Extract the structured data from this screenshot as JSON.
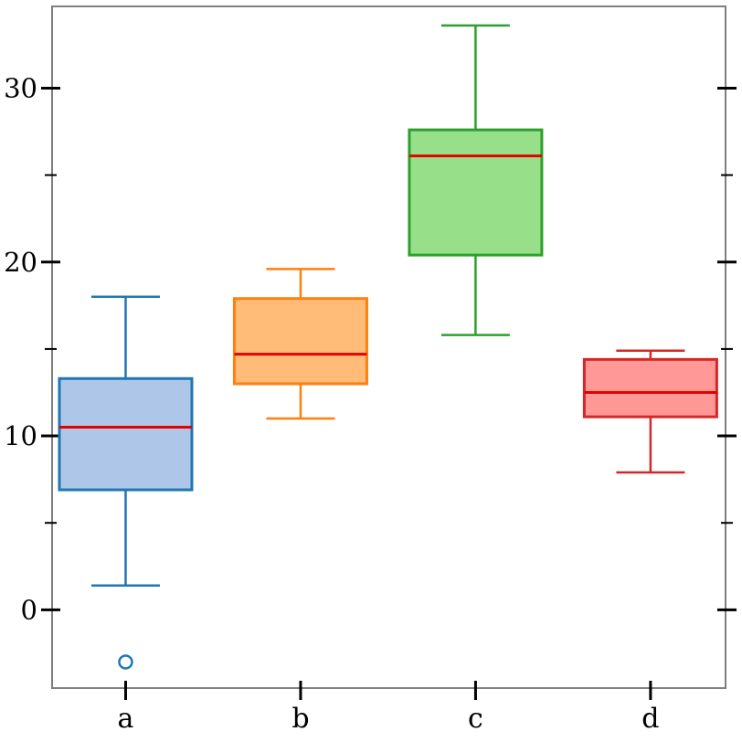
{
  "figure": {
    "background": "#ffffff",
    "spine_color": "#7f7f7f",
    "tick_color": "#000000"
  },
  "chart_data": {
    "type": "boxplot",
    "title": "",
    "xlabel": "",
    "ylabel": "",
    "grid": false,
    "legend": false,
    "categories": [
      "a",
      "b",
      "c",
      "d"
    ],
    "ylim": [
      -4.5,
      34.7
    ],
    "yticks_major": [
      0,
      10,
      20,
      30
    ],
    "yticks_minor": [
      5,
      15,
      25
    ],
    "median_color": "#e50000",
    "series": [
      {
        "name": "a",
        "whisker_low": 1.4,
        "q1": 6.9,
        "median": 10.5,
        "q3": 13.3,
        "whisker_high": 18.0,
        "outliers": [
          -3.0
        ],
        "edge_color": "#1f77b4",
        "fill_color": "#aec7e8"
      },
      {
        "name": "b",
        "whisker_low": 11.0,
        "q1": 13.0,
        "median": 14.7,
        "q3": 17.9,
        "whisker_high": 19.6,
        "outliers": [],
        "edge_color": "#ff7f0e",
        "fill_color": "#ffbb78"
      },
      {
        "name": "c",
        "whisker_low": 15.8,
        "q1": 20.4,
        "median": 26.1,
        "q3": 27.6,
        "whisker_high": 33.6,
        "outliers": [],
        "edge_color": "#2ca02c",
        "fill_color": "#98df8a"
      },
      {
        "name": "d",
        "whisker_low": 7.9,
        "q1": 11.1,
        "median": 12.5,
        "q3": 14.4,
        "whisker_high": 14.9,
        "outliers": [],
        "edge_color": "#d62728",
        "fill_color": "#ff9896"
      }
    ]
  }
}
